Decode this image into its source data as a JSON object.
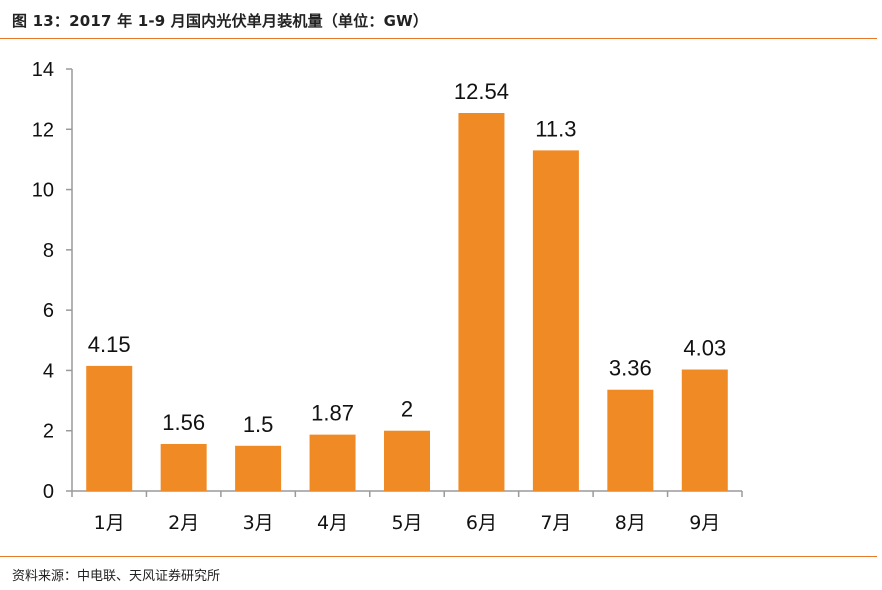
{
  "header": {
    "title": "图 13：2017 年 1-9 月国内光伏单月装机量（单位：GW）"
  },
  "footer": {
    "source": "资料来源：中电联、天风证券研究所"
  },
  "colors": {
    "bar": "#F08A24",
    "rule": "#E8782A",
    "axis": "#9a9a9a"
  },
  "chart_data": {
    "type": "bar",
    "title": "2017 年 1-9 月国内光伏单月装机量（单位：GW）",
    "xlabel": "",
    "ylabel": "",
    "categories": [
      "1月",
      "2月",
      "3月",
      "4月",
      "5月",
      "6月",
      "7月",
      "8月",
      "9月"
    ],
    "values": [
      4.15,
      1.56,
      1.5,
      1.87,
      2,
      12.54,
      11.3,
      3.36,
      4.03
    ],
    "value_labels": [
      "4.15",
      "1.56",
      "1.5",
      "1.87",
      "2",
      "12.54",
      "11.3",
      "3.36",
      "4.03"
    ],
    "ylim": [
      0,
      14
    ],
    "yticks": [
      "0",
      "2",
      "4",
      "6",
      "8",
      "10",
      "12",
      "14"
    ],
    "grid": false,
    "legend": "none"
  }
}
